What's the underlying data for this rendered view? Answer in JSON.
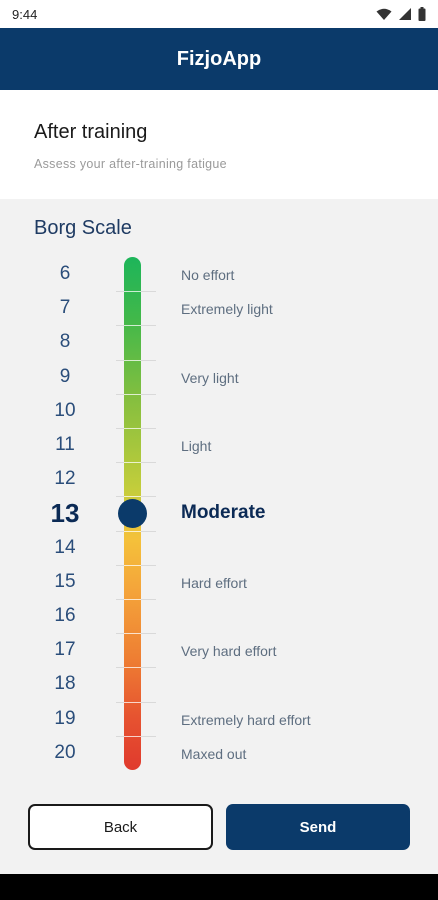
{
  "status_bar": {
    "time": "9:44",
    "icons": [
      "wifi-icon",
      "signal-icon",
      "battery-icon"
    ]
  },
  "app_bar": {
    "title": "FizjoApp"
  },
  "header": {
    "title": "After training",
    "subtitle": "Assess your after-training fatigue"
  },
  "scale": {
    "title": "Borg Scale",
    "selected": 13,
    "rows": [
      {
        "value": "6",
        "label": "No effort"
      },
      {
        "value": "7",
        "label": "Extremely light"
      },
      {
        "value": "8",
        "label": ""
      },
      {
        "value": "9",
        "label": "Very light"
      },
      {
        "value": "10",
        "label": ""
      },
      {
        "value": "11",
        "label": "Light"
      },
      {
        "value": "12",
        "label": ""
      },
      {
        "value": "13",
        "label": "Moderate"
      },
      {
        "value": "14",
        "label": ""
      },
      {
        "value": "15",
        "label": "Hard effort"
      },
      {
        "value": "16",
        "label": ""
      },
      {
        "value": "17",
        "label": "Very hard effort"
      },
      {
        "value": "18",
        "label": ""
      },
      {
        "value": "19",
        "label": "Extremely hard effort"
      },
      {
        "value": "20",
        "label": "Maxed out"
      }
    ]
  },
  "buttons": {
    "back": "Back",
    "send": "Send"
  },
  "colors": {
    "primary": "#0b3a6a",
    "background": "#f2f2f2"
  }
}
